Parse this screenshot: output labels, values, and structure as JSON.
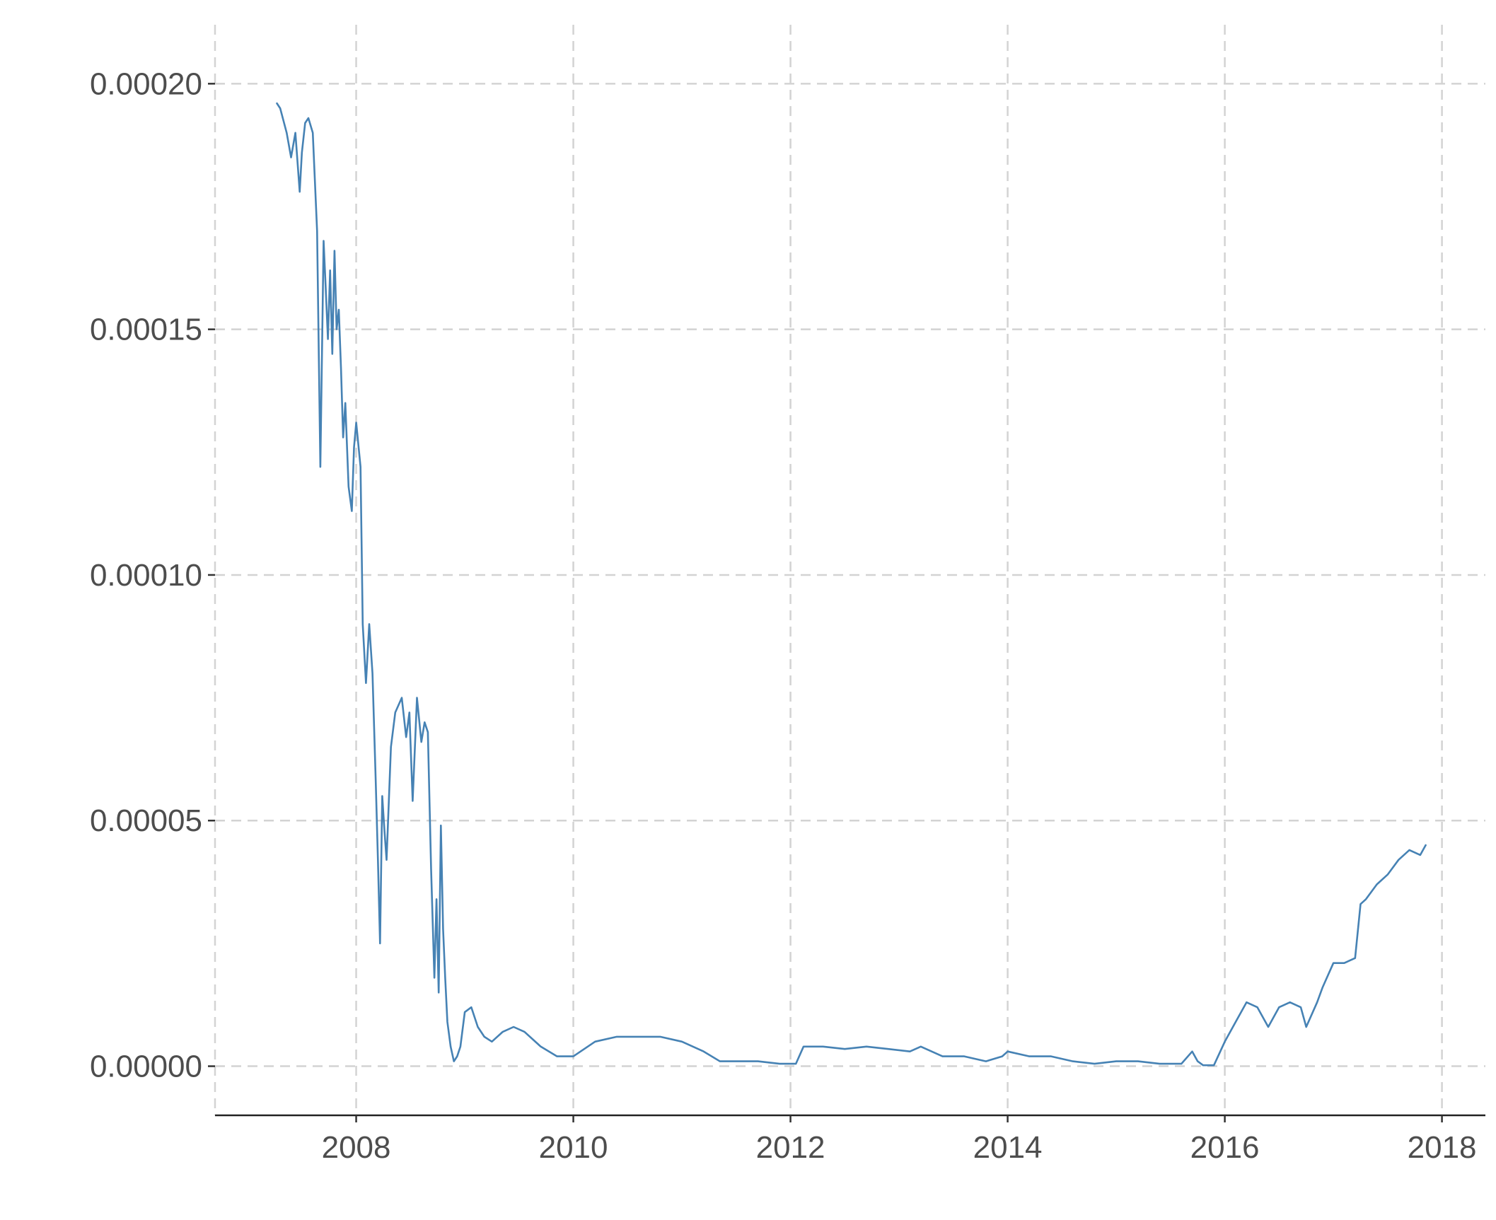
{
  "chart_data": {
    "type": "line",
    "title": "",
    "xlabel": "",
    "ylabel": "",
    "x_ticks": [
      2008,
      2010,
      2012,
      2014,
      2016,
      2018
    ],
    "x_tick_labels": [
      "2008",
      "2010",
      "2012",
      "2014",
      "2016",
      "2018"
    ],
    "y_ticks": [
      0,
      5e-05,
      0.0001,
      0.00015,
      0.0002
    ],
    "y_tick_labels": [
      "0.00000",
      "0.00005",
      "0.00010",
      "0.00015",
      "0.00020"
    ],
    "xlim": [
      2006.7,
      2018.4
    ],
    "ylim": [
      -1e-05,
      0.000212
    ],
    "grid": true,
    "legend": "none",
    "colors": {
      "line": "#4682b4",
      "grid": "#d3d3d3",
      "axis": "#222222",
      "text": "#4d4d4d"
    },
    "series": [
      {
        "x": [
          2007.27,
          2007.3,
          2007.36,
          2007.4,
          2007.44,
          2007.48,
          2007.5,
          2007.53,
          2007.56,
          2007.6,
          2007.64,
          2007.67,
          2007.7,
          2007.72,
          2007.74,
          2007.76,
          2007.78,
          2007.8,
          2007.82,
          2007.84,
          2007.86,
          2007.88,
          2007.9,
          2007.93,
          2007.96,
          2007.98,
          2008.0,
          2008.04,
          2008.06,
          2008.09,
          2008.12,
          2008.15,
          2008.18,
          2008.2,
          2008.22,
          2008.24,
          2008.26,
          2008.28,
          2008.32,
          2008.36,
          2008.42,
          2008.46,
          2008.49,
          2008.52,
          2008.56,
          2008.6,
          2008.63,
          2008.66,
          2008.69,
          2008.72,
          2008.74,
          2008.76,
          2008.78,
          2008.8,
          2008.82,
          2008.84,
          2008.87,
          2008.9,
          2008.93,
          2008.96,
          2009.0,
          2009.06,
          2009.12,
          2009.18,
          2009.25,
          2009.35,
          2009.45,
          2009.55,
          2009.7,
          2009.85,
          2010.0,
          2010.2,
          2010.4,
          2010.6,
          2010.8,
          2011.0,
          2011.2,
          2011.35,
          2011.5,
          2011.7,
          2011.9,
          2012.05,
          2012.12,
          2012.3,
          2012.5,
          2012.7,
          2012.9,
          2013.1,
          2013.2,
          2013.4,
          2013.6,
          2013.8,
          2013.95,
          2014.0,
          2014.2,
          2014.4,
          2014.6,
          2014.8,
          2015.0,
          2015.2,
          2015.4,
          2015.6,
          2015.7,
          2015.75,
          2015.8,
          2015.9,
          2016.0,
          2016.1,
          2016.2,
          2016.3,
          2016.4,
          2016.5,
          2016.6,
          2016.7,
          2016.75,
          2016.85,
          2016.9,
          2017.0,
          2017.1,
          2017.2,
          2017.25,
          2017.3,
          2017.4,
          2017.5,
          2017.6,
          2017.7,
          2017.8,
          2017.85
        ],
        "y": [
          0.000196,
          0.000195,
          0.00019,
          0.000185,
          0.00019,
          0.000178,
          0.000186,
          0.000192,
          0.000193,
          0.00019,
          0.00017,
          0.000122,
          0.000168,
          0.000158,
          0.000148,
          0.000162,
          0.000145,
          0.000166,
          0.00015,
          0.000154,
          0.000142,
          0.000128,
          0.000135,
          0.000118,
          0.000113,
          0.000126,
          0.000131,
          0.000122,
          9e-05,
          7.8e-05,
          9e-05,
          8e-05,
          5.8e-05,
          4.2e-05,
          2.5e-05,
          5.5e-05,
          4.8e-05,
          4.2e-05,
          6.5e-05,
          7.2e-05,
          7.5e-05,
          6.7e-05,
          7.2e-05,
          5.4e-05,
          7.5e-05,
          6.6e-05,
          7e-05,
          6.8e-05,
          4e-05,
          1.8e-05,
          3.4e-05,
          1.5e-05,
          4.9e-05,
          2.8e-05,
          1.8e-05,
          9e-06,
          4e-06,
          1e-06,
          2e-06,
          4e-06,
          1.1e-05,
          1.2e-05,
          8e-06,
          6e-06,
          5e-06,
          7e-06,
          8e-06,
          7e-06,
          4e-06,
          2e-06,
          2e-06,
          5e-06,
          6e-06,
          6e-06,
          6e-06,
          5e-06,
          3e-06,
          1e-06,
          1e-06,
          1e-06,
          5e-07,
          5e-07,
          4e-06,
          4e-06,
          3.5e-06,
          4e-06,
          3.5e-06,
          3e-06,
          4e-06,
          2e-06,
          2e-06,
          1e-06,
          2e-06,
          3e-06,
          2e-06,
          2e-06,
          1e-06,
          5e-07,
          1e-06,
          1e-06,
          5e-07,
          5e-07,
          3e-06,
          1e-06,
          2e-07,
          2e-07,
          5e-06,
          9e-06,
          1.3e-05,
          1.2e-05,
          8e-06,
          1.2e-05,
          1.3e-05,
          1.2e-05,
          8e-06,
          1.3e-05,
          1.6e-05,
          2.1e-05,
          2.1e-05,
          2.2e-05,
          3.3e-05,
          3.4e-05,
          3.7e-05,
          3.9e-05,
          4.2e-05,
          4.4e-05,
          4.3e-05,
          4.5e-05
        ]
      }
    ]
  }
}
